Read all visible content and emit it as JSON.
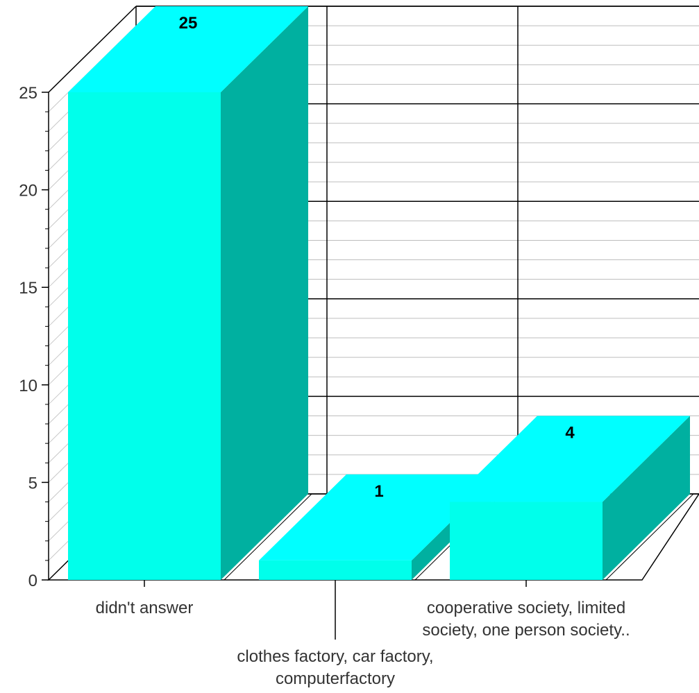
{
  "chart_data": {
    "type": "bar",
    "style": "3d",
    "categories": [
      [
        "didn't answer"
      ],
      [
        "clothes factory, car factory,",
        "computerfactory"
      ],
      [
        "cooperative society, limited",
        "society, one person society.."
      ]
    ],
    "values": [
      25,
      1,
      4
    ],
    "value_labels": [
      "25",
      "1",
      "4"
    ],
    "y_ticks": [
      "0",
      "5",
      "10",
      "15",
      "20",
      "25"
    ],
    "ylim": [
      0,
      25
    ],
    "grid": true,
    "legend": false,
    "colors": {
      "bar_front": "#00FFEB",
      "bar_top": "#00FFFF",
      "bar_side": "#00B0A0"
    }
  }
}
